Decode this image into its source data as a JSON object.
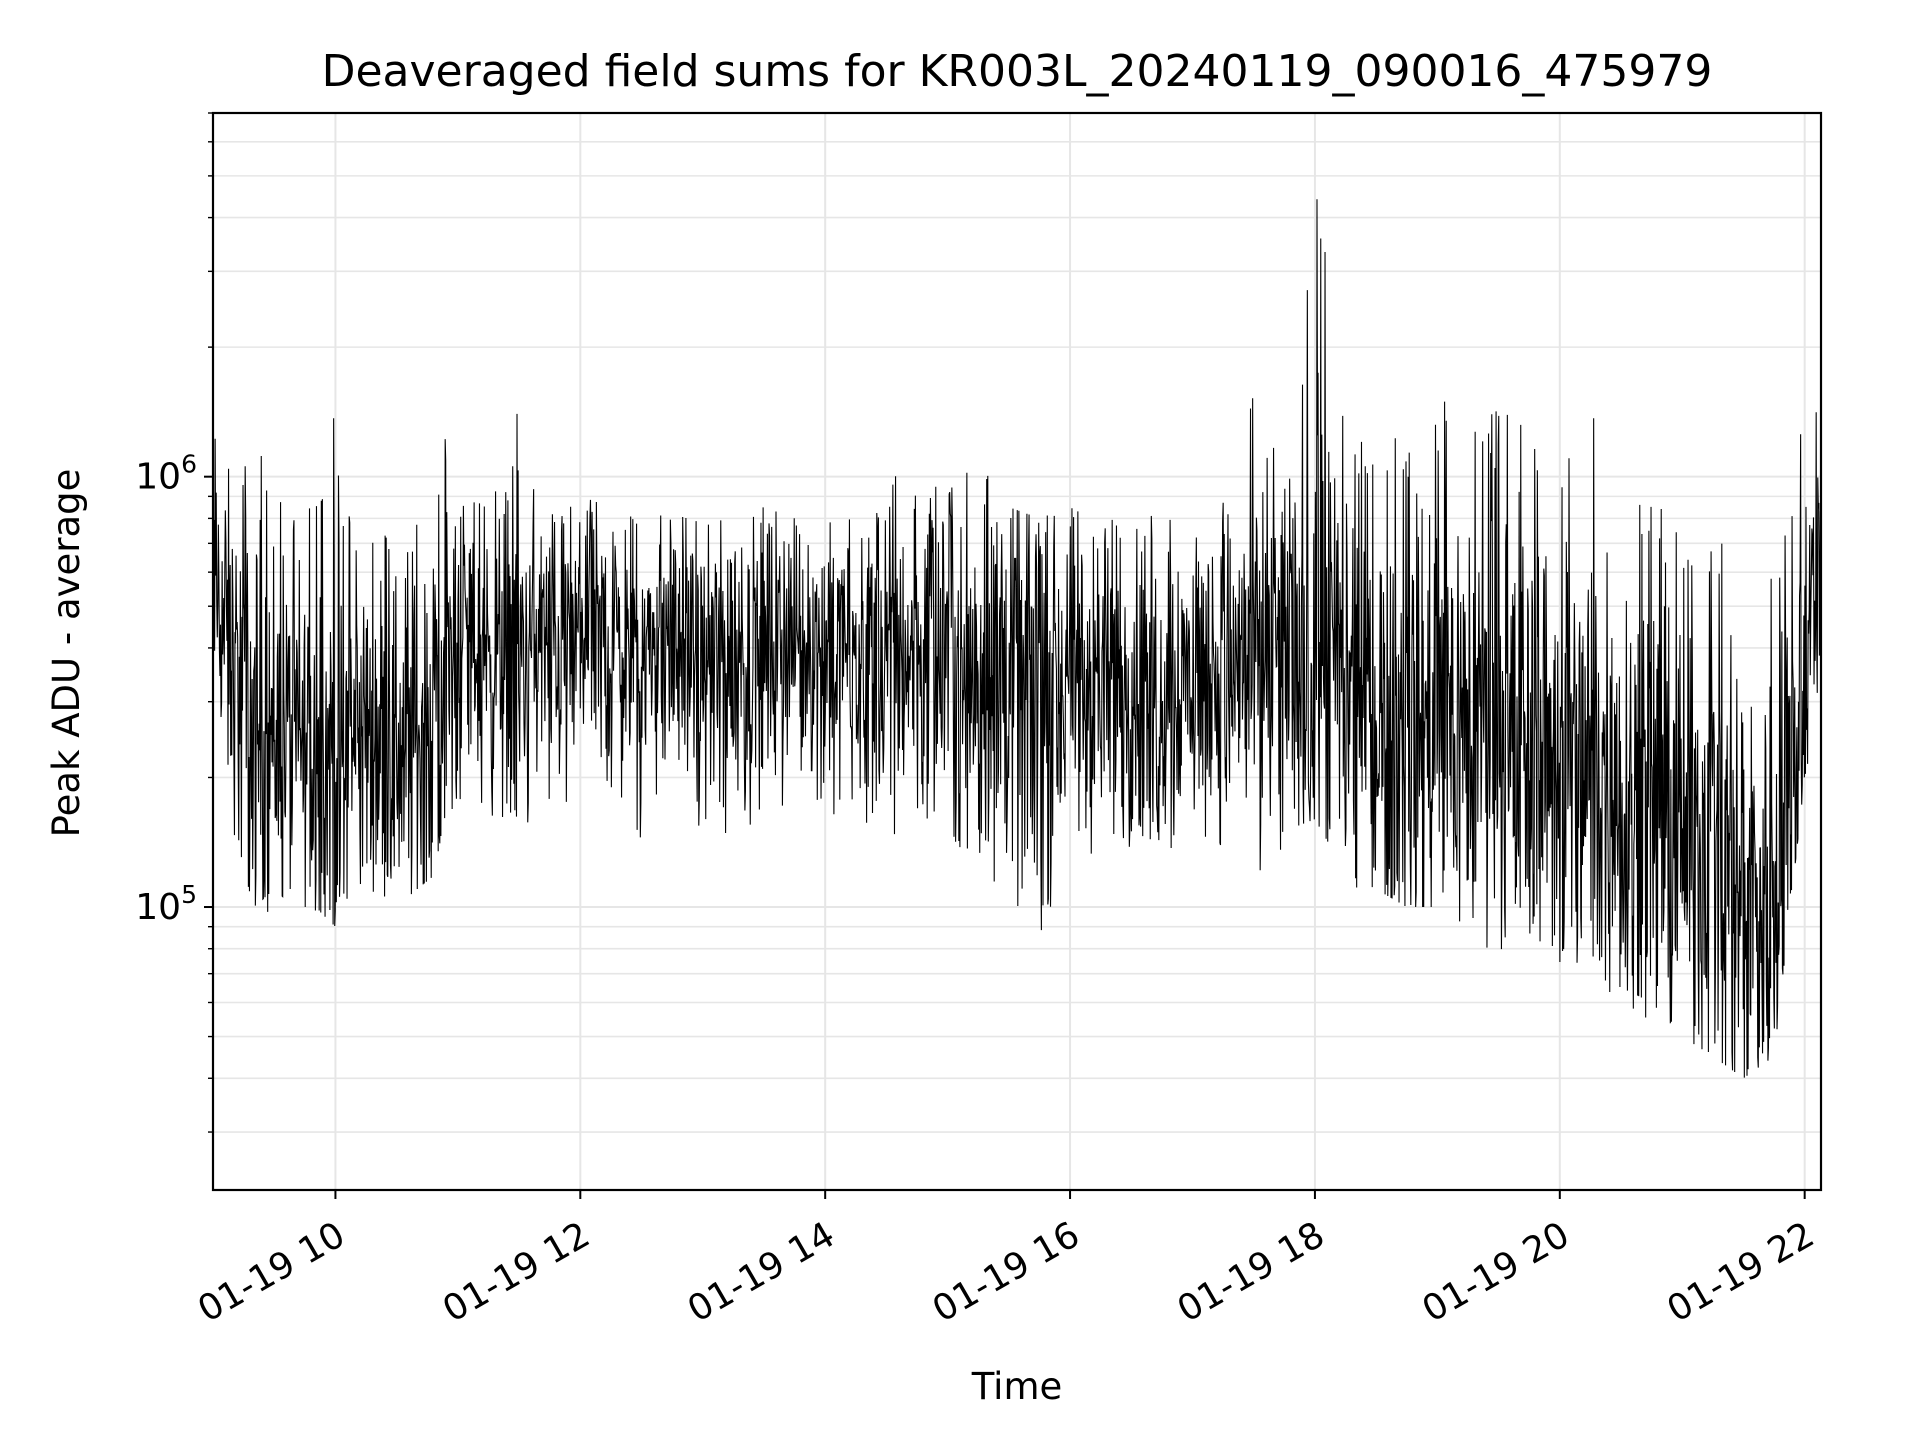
{
  "chart_data": {
    "type": "line",
    "title": "Deaveraged field sums for KR003L_20240119_090016_475979",
    "xlabel": "Time",
    "ylabel": "Peak ADU - average",
    "x_scale": "time",
    "y_scale": "log",
    "xlim": [
      "2024-01-19 09:00",
      "2024-01-19 22:08"
    ],
    "ylim": [
      22000,
      7000000
    ],
    "x_ticks": [
      "01-19 10",
      "01-19 12",
      "01-19 14",
      "01-19 16",
      "01-19 18",
      "01-19 20",
      "01-19 22"
    ],
    "y_ticks": [
      {
        "base": "10",
        "exp": "5"
      },
      {
        "base": "10",
        "exp": "6"
      }
    ],
    "grid": true,
    "line_color": "#000000",
    "series": [
      {
        "x": [
          "2024-01-19 09:00",
          "2024-01-19 09:10",
          "2024-01-19 09:20",
          "2024-01-19 09:30",
          "2024-01-19 09:40",
          "2024-01-19 09:50",
          "2024-01-19 10:00",
          "2024-01-19 10:10",
          "2024-01-19 10:20",
          "2024-01-19 10:30",
          "2024-01-19 10:40",
          "2024-01-19 10:50",
          "2024-01-19 11:00",
          "2024-01-19 11:10",
          "2024-01-19 11:20",
          "2024-01-19 11:30",
          "2024-01-19 11:40",
          "2024-01-19 11:50",
          "2024-01-19 12:00",
          "2024-01-19 12:15",
          "2024-01-19 12:30",
          "2024-01-19 12:45",
          "2024-01-19 13:00",
          "2024-01-19 13:15",
          "2024-01-19 13:30",
          "2024-01-19 13:45",
          "2024-01-19 14:00",
          "2024-01-19 14:15",
          "2024-01-19 14:30",
          "2024-01-19 14:45",
          "2024-01-19 15:00",
          "2024-01-19 15:15",
          "2024-01-19 15:30",
          "2024-01-19 15:45",
          "2024-01-19 16:00",
          "2024-01-19 16:15",
          "2024-01-19 16:30",
          "2024-01-19 16:45",
          "2024-01-19 17:00",
          "2024-01-19 17:15",
          "2024-01-19 17:30",
          "2024-01-19 17:45",
          "2024-01-19 18:00",
          "2024-01-19 18:15",
          "2024-01-19 18:30",
          "2024-01-19 18:45",
          "2024-01-19 19:00",
          "2024-01-19 19:15",
          "2024-01-19 19:30",
          "2024-01-19 19:45",
          "2024-01-19 20:00",
          "2024-01-19 20:15",
          "2024-01-19 20:30",
          "2024-01-19 20:45",
          "2024-01-19 21:00",
          "2024-01-19 21:15",
          "2024-01-19 21:30",
          "2024-01-19 21:45",
          "2024-01-19 22:00",
          "2024-01-19 22:08"
        ],
        "y": [
          600000,
          350000,
          250000,
          260000,
          240000,
          220000,
          230000,
          250000,
          260000,
          240000,
          250000,
          290000,
          420000,
          400000,
          380000,
          390000,
          420000,
          400000,
          410000,
          400000,
          380000,
          420000,
          370000,
          380000,
          390000,
          400000,
          400000,
          390000,
          380000,
          400000,
          350000,
          380000,
          330000,
          290000,
          330000,
          320000,
          340000,
          330000,
          350000,
          340000,
          380000,
          400000,
          390000,
          310000,
          280000,
          260000,
          280000,
          260000,
          240000,
          240000,
          230000,
          200000,
          190000,
          170000,
          150000,
          140000,
          110000,
          100000,
          350000,
          650000
        ],
        "y_low": [
          300000,
          150000,
          100000,
          110000,
          100000,
          100000,
          90000,
          100000,
          110000,
          100000,
          110000,
          120000,
          170000,
          170000,
          160000,
          170000,
          180000,
          170000,
          180000,
          170000,
          160000,
          180000,
          160000,
          160000,
          170000,
          170000,
          180000,
          170000,
          160000,
          170000,
          150000,
          130000,
          80000,
          80000,
          130000,
          130000,
          150000,
          140000,
          150000,
          140000,
          130000,
          150000,
          160000,
          120000,
          110000,
          100000,
          100000,
          90000,
          85000,
          85000,
          80000,
          70000,
          65000,
          60000,
          50000,
          45000,
          40000,
          45000,
          200000,
          300000
        ],
        "y_high": [
          1600000,
          1100000,
          1200000,
          1100000,
          900000,
          1000000,
          1500000,
          700000,
          750000,
          800000,
          1400000,
          1550000,
          900000,
          900000,
          1000000,
          1600000,
          850000,
          800000,
          900000,
          850000,
          800000,
          820000,
          780000,
          800000,
          850000,
          800000,
          780000,
          800000,
          1050000,
          900000,
          1000000,
          1100000,
          850000,
          800000,
          850000,
          800000,
          1000000,
          850000,
          800000,
          900000,
          1550000,
          1000000,
          5500000,
          1300000,
          1300000,
          1200000,
          1500000,
          1500000,
          1500000,
          1300000,
          1100000,
          1500000,
          1100000,
          900000,
          750000,
          750000,
          700000,
          650000,
          1500000,
          2000000
        ]
      }
    ]
  }
}
